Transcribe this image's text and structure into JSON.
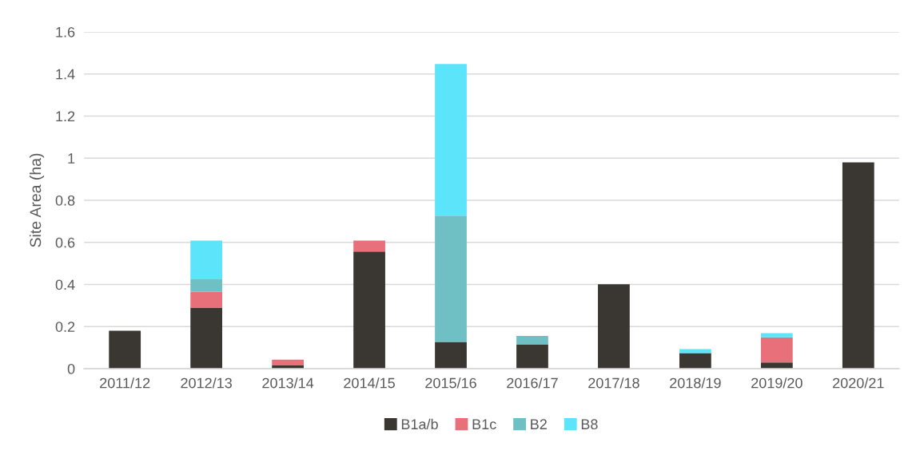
{
  "chart_data": {
    "type": "bar",
    "stacked": true,
    "ylabel": "Site Area (ha)",
    "categories": [
      "2011/12",
      "2012/13",
      "2013/14",
      "2014/15",
      "2015/16",
      "2016/17",
      "2017/18",
      "2018/19",
      "2019/20",
      "2020/21"
    ],
    "series": [
      {
        "name": "B1a/b",
        "color": "#3a3632",
        "values": [
          0.18,
          0.29,
          0.015,
          0.556,
          0.127,
          0.114,
          0.401,
          0.074,
          0.03,
          0.98
        ]
      },
      {
        "name": "B1c",
        "color": "#e8707a",
        "values": [
          null,
          0.075,
          0.028,
          0.053,
          null,
          null,
          null,
          null,
          0.119,
          null
        ]
      },
      {
        "name": "B2",
        "color": "#6fc0c4",
        "values": [
          null,
          0.063,
          null,
          null,
          0.6,
          0.042,
          null,
          null,
          null,
          null
        ]
      },
      {
        "name": "B8",
        "color": "#5ce5fa",
        "values": [
          null,
          0.181,
          null,
          null,
          0.72,
          null,
          null,
          0.019,
          0.02,
          null
        ]
      }
    ],
    "ylim": [
      0,
      1.6
    ],
    "yticks": [
      0,
      0.2,
      0.4,
      0.6,
      0.8,
      1,
      1.2,
      1.4,
      1.6
    ],
    "grid": "y",
    "legend": "bottom"
  }
}
